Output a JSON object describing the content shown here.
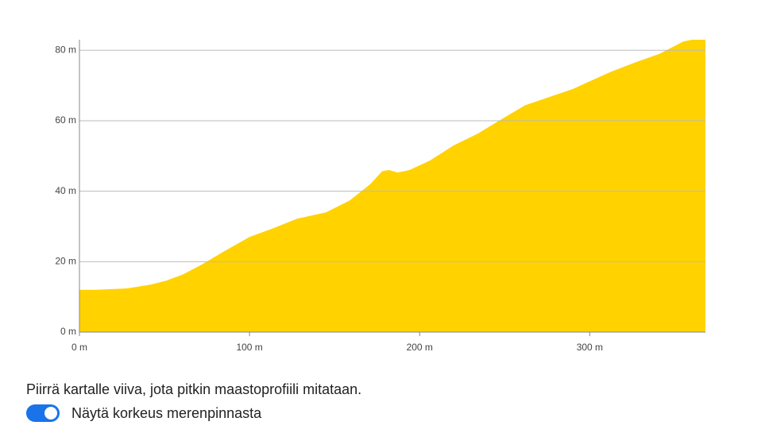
{
  "chart_data": {
    "type": "area",
    "color": "#ffd200",
    "x": [
      0,
      9.3,
      28,
      42,
      51,
      61,
      72,
      86,
      100,
      114,
      128,
      145,
      159,
      171,
      178,
      182,
      187,
      194,
      206,
      220,
      234,
      248,
      262,
      276,
      290,
      299,
      313,
      327,
      341,
      355,
      360,
      368
    ],
    "values": [
      12,
      12,
      12.4,
      13.5,
      14.6,
      16.4,
      19.2,
      23.2,
      27,
      29.5,
      32.2,
      34,
      37.4,
      42,
      45.7,
      46,
      45.3,
      46,
      48.7,
      53,
      56.3,
      60.4,
      64.4,
      66.7,
      69,
      71,
      74,
      76.6,
      79,
      82.5,
      83,
      83
    ],
    "xlim": [
      0,
      368
    ],
    "ylim": [
      0,
      83
    ],
    "xticks": [
      {
        "value": 0,
        "label": "0 m"
      },
      {
        "value": 100,
        "label": "100 m"
      },
      {
        "value": 200,
        "label": "200 m"
      },
      {
        "value": 300,
        "label": "300 m"
      }
    ],
    "yticks": [
      {
        "value": 0,
        "label": "0 m"
      },
      {
        "value": 20,
        "label": "20 m"
      },
      {
        "value": 40,
        "label": "40 m"
      },
      {
        "value": 60,
        "label": "60 m"
      },
      {
        "value": 80,
        "label": "80 m"
      }
    ],
    "grid": true
  },
  "instruction": "Piirrä kartalle viiva, jota pitkin maastoprofiili mitataan.",
  "toggle": {
    "label": "Näytä korkeus merenpinnasta"
  }
}
